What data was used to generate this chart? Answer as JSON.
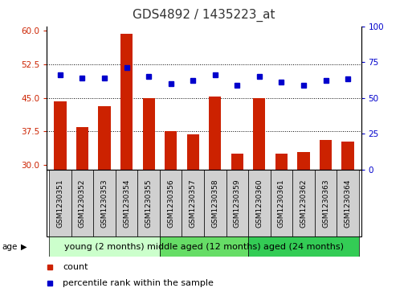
{
  "title": "GDS4892 / 1435223_at",
  "categories": [
    "GSM1230351",
    "GSM1230352",
    "GSM1230353",
    "GSM1230354",
    "GSM1230355",
    "GSM1230356",
    "GSM1230357",
    "GSM1230358",
    "GSM1230359",
    "GSM1230360",
    "GSM1230361",
    "GSM1230362",
    "GSM1230363",
    "GSM1230364"
  ],
  "counts": [
    44.2,
    38.5,
    43.2,
    59.3,
    45.0,
    37.5,
    36.8,
    45.3,
    32.5,
    45.0,
    32.5,
    32.8,
    35.5,
    35.2
  ],
  "percentiles": [
    66,
    64,
    64,
    71,
    65,
    60,
    62,
    66,
    59,
    65,
    61,
    59,
    62,
    63
  ],
  "ylim_left": [
    29,
    61
  ],
  "ylim_right": [
    0,
    100
  ],
  "yticks_left": [
    30,
    37.5,
    45,
    52.5,
    60
  ],
  "yticks_right": [
    0,
    25,
    50,
    75,
    100
  ],
  "bar_color": "#cc2200",
  "dot_color": "#0000cc",
  "background_color": "#ffffff",
  "label_cell_color": "#d0d0d0",
  "groups": [
    {
      "label": "young (2 months)",
      "start": 0,
      "end": 5,
      "color": "#ccffcc"
    },
    {
      "label": "middle aged (12 months)",
      "start": 5,
      "end": 9,
      "color": "#66dd66"
    },
    {
      "label": "aged (24 months)",
      "start": 9,
      "end": 14,
      "color": "#33cc55"
    }
  ],
  "age_label": "age",
  "legend_items": [
    {
      "label": "count",
      "color": "#cc2200"
    },
    {
      "label": "percentile rank within the sample",
      "color": "#0000cc"
    }
  ],
  "title_fontsize": 11,
  "tick_fontsize": 7.5,
  "category_fontsize": 6.5,
  "group_fontsize": 8,
  "legend_fontsize": 8
}
